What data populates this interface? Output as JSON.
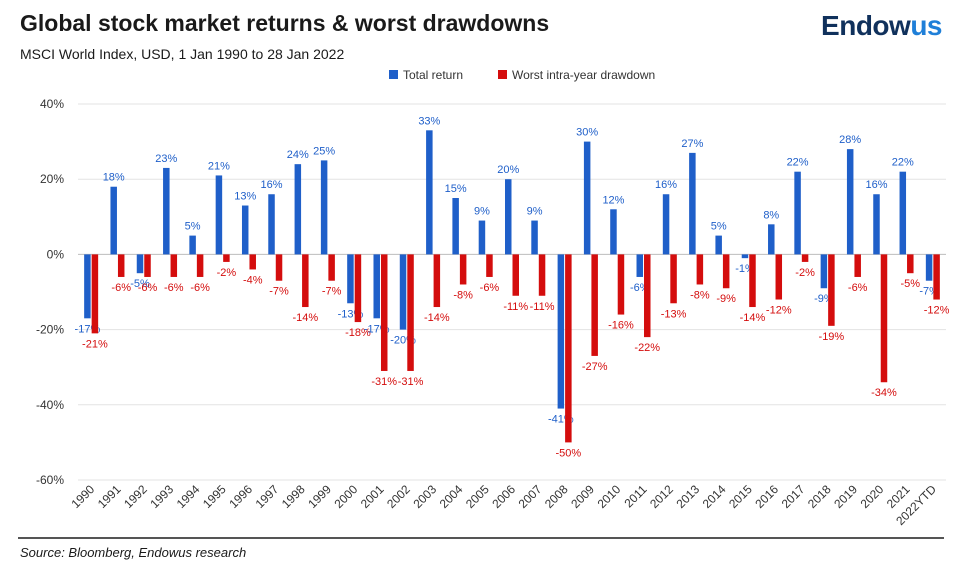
{
  "header": {
    "title": "Global stock market returns & worst drawdowns",
    "subtitle": "MSCI World Index, USD, 1 Jan 1990 to 28 Jan 2022"
  },
  "brand": {
    "logo_main": "Endow",
    "logo_accent": "us"
  },
  "footer": {
    "source": "Source: Bloomberg, Endowus research"
  },
  "colors": {
    "total": "#1f5fc9",
    "drawdown": "#d40d0d"
  },
  "chart_data": {
    "type": "bar",
    "title": "Global stock market returns & worst drawdowns",
    "xlabel": "",
    "ylabel": "",
    "ylim": [
      -60,
      40
    ],
    "yticks": [
      40,
      20,
      0,
      -20,
      -40,
      -60
    ],
    "ytick_labels": [
      "40%",
      "20%",
      "0%",
      "-20%",
      "-40%",
      "-60%"
    ],
    "grid": true,
    "legend_position": "top-center",
    "categories": [
      "1990",
      "1991",
      "1992",
      "1993",
      "1994",
      "1995",
      "1996",
      "1997",
      "1998",
      "1999",
      "2000",
      "2001",
      "2002",
      "2003",
      "2004",
      "2005",
      "2006",
      "2007",
      "2008",
      "2009",
      "2010",
      "2011",
      "2012",
      "2013",
      "2014",
      "2015",
      "2016",
      "2017",
      "2018",
      "2019",
      "2020",
      "2021",
      "2022YTD"
    ],
    "series": [
      {
        "name": "Total return",
        "values": [
          -17,
          18,
          -5,
          23,
          5,
          21,
          13,
          16,
          24,
          25,
          -13,
          -17,
          -20,
          33,
          15,
          9,
          20,
          9,
          -41,
          30,
          12,
          -6,
          16,
          27,
          5,
          -1,
          8,
          22,
          -9,
          28,
          16,
          22,
          -7
        ],
        "labels": [
          "-17%",
          "18%",
          "-5%",
          "23%",
          "5%",
          "21%",
          "13%",
          "16%",
          "24%",
          "25%",
          "-13%",
          "-17%",
          "-20%",
          "33%",
          "15%",
          "9%",
          "20%",
          "9%",
          "-41%",
          "30%",
          "12%",
          "-6%",
          "16%",
          "27%",
          "5%",
          "-1%",
          "8%",
          "22%",
          "-9%",
          "28%",
          "16%",
          "22%",
          "-7%"
        ]
      },
      {
        "name": "Worst intra-year drawdown",
        "values": [
          -21,
          -6,
          -6,
          -6,
          -6,
          -2,
          -4,
          -7,
          -14,
          -7,
          -18,
          -31,
          -31,
          -14,
          -8,
          -6,
          -11,
          -11,
          -50,
          -27,
          -16,
          -22,
          -13,
          -8,
          -9,
          -14,
          -12,
          -2,
          -19,
          -6,
          -34,
          -5,
          -12
        ],
        "labels": [
          "-21%",
          "-6%",
          "-6%",
          "-6%",
          "-6%",
          "-2%",
          "-4%",
          "-7%",
          "-14%",
          "-7%",
          "-18%",
          "-31%",
          "-31%",
          "-14%",
          "-8%",
          "-6%",
          "-11%",
          "-11%",
          "-50%",
          "-27%",
          "-16%",
          "-22%",
          "-13%",
          "-8%",
          "-9%",
          "-14%",
          "-12%",
          "-2%",
          "-19%",
          "-6%",
          "-34%",
          "-5%",
          "-12%"
        ]
      }
    ]
  }
}
